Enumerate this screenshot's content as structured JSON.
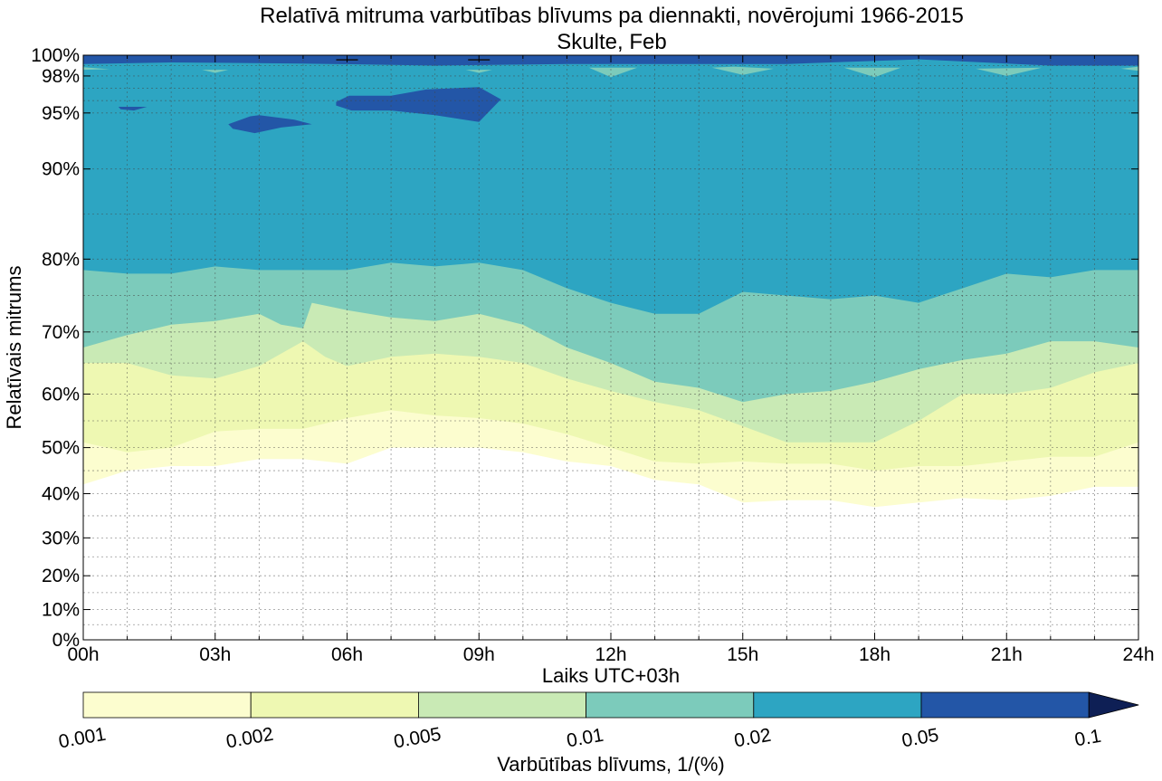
{
  "chart_data": {
    "type": "contour",
    "title": "Relatīvā mitruma varbūtības blīvums pa diennakti, novērojumi 1966-2015",
    "subtitle": "Skulte, Feb",
    "xlabel": "Laiks UTC+03h",
    "ylabel": "Relatīvais mitrums",
    "x_unit": "hour",
    "xlim": [
      0,
      24
    ],
    "ylim": [
      0,
      100
    ],
    "y_scale": "custom-nonlinear",
    "x_ticks": [
      0,
      3,
      6,
      9,
      12,
      15,
      18,
      21,
      24
    ],
    "x_tick_labels": [
      "00h",
      "03h",
      "06h",
      "09h",
      "12h",
      "15h",
      "18h",
      "21h",
      "24h"
    ],
    "y_ticks": [
      0,
      10,
      20,
      30,
      40,
      50,
      60,
      70,
      80,
      90,
      95,
      98,
      100
    ],
    "y_tick_labels": [
      "0%",
      "10%",
      "20%",
      "30%",
      "40%",
      "50%",
      "60%",
      "70%",
      "80%",
      "90%",
      "95%",
      "98%",
      "100%"
    ],
    "y_axis_map": [
      [
        0,
        0
      ],
      [
        10,
        0.0518
      ],
      [
        20,
        0.1096
      ],
      [
        30,
        0.1744
      ],
      [
        40,
        0.25
      ],
      [
        50,
        0.3288
      ],
      [
        60,
        0.4204
      ],
      [
        70,
        0.5266
      ],
      [
        80,
        0.6512
      ],
      [
        90,
        0.8054
      ],
      [
        95,
        0.9012
      ],
      [
        98,
        0.9645
      ],
      [
        100,
        1.0
      ]
    ],
    "grid": true,
    "colorbar": {
      "label": "Varbūtības blīvums, 1/(%)",
      "levels": [
        0.001,
        0.002,
        0.005,
        0.01,
        0.02,
        0.05,
        0.1
      ],
      "level_labels": [
        "0.001",
        "0.002",
        "0.005",
        "0.01",
        "0.02",
        "0.05",
        "0.1"
      ],
      "colors": [
        "#fcfdcf",
        "#eef8b2",
        "#c9eab5",
        "#7ccbbb",
        "#2da5c2",
        "#2356a7"
      ],
      "extend_color": "#0e1f55",
      "extend": "max"
    },
    "band_boundaries": [
      {
        "name": "0.001",
        "x": [
          0,
          1,
          2,
          3,
          4,
          5,
          6,
          7,
          8,
          9,
          10,
          11,
          12,
          13,
          14,
          15,
          16,
          17,
          18,
          19,
          20,
          21,
          22,
          23,
          24
        ],
        "y": [
          42,
          45,
          46,
          46,
          47.5,
          47.5,
          46.5,
          50,
          50,
          50,
          49,
          47,
          46,
          43,
          42,
          38,
          38.5,
          38.5,
          37,
          38,
          39,
          38.5,
          39.5,
          41.5,
          41.5
        ]
      },
      {
        "name": "0.002",
        "x": [
          0,
          1,
          2,
          3,
          4,
          5,
          6,
          7,
          8,
          9,
          10,
          11,
          12,
          13,
          14,
          15,
          16,
          17,
          18,
          19,
          20,
          21,
          22,
          23,
          24
        ],
        "y": [
          51,
          49,
          50,
          53,
          53.5,
          53.5,
          55.5,
          57,
          56,
          55.5,
          54.5,
          52.5,
          50,
          47,
          46.5,
          47,
          46.5,
          46.5,
          45,
          46,
          46,
          47,
          48,
          48,
          51
        ]
      },
      {
        "name": "0.005",
        "x": [
          0,
          1,
          2,
          3,
          4,
          4.5,
          5,
          5.5,
          6,
          7,
          8,
          9,
          10,
          11,
          12,
          13,
          14,
          15,
          16,
          17,
          18,
          19,
          20,
          21,
          22,
          23,
          24
        ],
        "y": [
          65,
          65,
          63,
          62.5,
          64.5,
          66.5,
          68.5,
          66,
          64.5,
          66,
          66.5,
          66,
          65,
          62.5,
          60.5,
          58.5,
          57,
          54,
          51,
          51,
          51,
          55,
          60,
          60,
          61,
          63.5,
          65
        ]
      },
      {
        "name": "0.01",
        "x": [
          0,
          1,
          2,
          3,
          4,
          4.5,
          5,
          5.2,
          6,
          7,
          8,
          9,
          10,
          11,
          12,
          13,
          14,
          15,
          16,
          17,
          18,
          19,
          20,
          21,
          22,
          23,
          24
        ],
        "y": [
          67.5,
          69.5,
          71,
          71.5,
          72.5,
          71,
          70.5,
          74,
          73,
          72,
          71.5,
          72.5,
          71,
          67.5,
          65,
          62,
          61,
          58.5,
          60,
          60.5,
          62,
          64,
          65.5,
          66.5,
          68.5,
          68.5,
          67.5
        ]
      },
      {
        "name": "0.02",
        "x": [
          0,
          1,
          2,
          3,
          4,
          5,
          6,
          7,
          8,
          9,
          10,
          11,
          12,
          13,
          14,
          15,
          16,
          17,
          18,
          19,
          20,
          21,
          22,
          23,
          24
        ],
        "y": [
          78.5,
          78,
          78,
          79,
          78.5,
          78.5,
          78.5,
          79.5,
          79,
          79.5,
          78.5,
          76,
          74,
          72.5,
          72.5,
          75.5,
          75,
          74.5,
          75,
          74,
          76,
          78,
          77.5,
          78.5,
          78.5
        ]
      }
    ],
    "high_density_patches": [
      {
        "level": "0.05",
        "points": [
          [
            0.8,
            95.5
          ],
          [
            1.45,
            95.5
          ],
          [
            1.15,
            95.2
          ],
          [
            0.85,
            95.3
          ]
        ]
      },
      {
        "level": "0.05",
        "points": [
          [
            3.3,
            94.0
          ],
          [
            3.8,
            94.7
          ],
          [
            4.0,
            94.8
          ],
          [
            4.8,
            94.4
          ],
          [
            5.2,
            94.0
          ],
          [
            4.5,
            93.7
          ],
          [
            3.9,
            93.2
          ],
          [
            3.4,
            93.6
          ]
        ]
      },
      {
        "level": "0.05",
        "points": [
          [
            5.75,
            95.9
          ],
          [
            6.05,
            96.4
          ],
          [
            7.0,
            96.4
          ],
          [
            7.8,
            96.9
          ],
          [
            9.0,
            97.1
          ],
          [
            9.5,
            96.1
          ],
          [
            9.0,
            94.2
          ],
          [
            8.0,
            94.8
          ],
          [
            7.0,
            95.2
          ],
          [
            6.1,
            95.2
          ],
          [
            5.75,
            95.6
          ]
        ]
      },
      {
        "level": "0.05",
        "points": [
          [
            0,
            99.15
          ],
          [
            2,
            99.3
          ],
          [
            5,
            99.2
          ],
          [
            8,
            99.0
          ],
          [
            11,
            99.15
          ],
          [
            13,
            99.15
          ],
          [
            16,
            99.15
          ],
          [
            19,
            99.6
          ],
          [
            20,
            99.4
          ],
          [
            22,
            99.0
          ],
          [
            24,
            99.0
          ],
          [
            24,
            100
          ],
          [
            0,
            100
          ]
        ]
      }
    ],
    "light_patches": [
      {
        "level": "0.02",
        "points": [
          [
            0,
            98.6
          ],
          [
            0.6,
            98.65
          ],
          [
            0,
            98.85
          ]
        ]
      },
      {
        "level": "0.02",
        "points": [
          [
            2.7,
            98.6
          ],
          [
            3.0,
            98.3
          ],
          [
            3.3,
            98.6
          ]
        ]
      },
      {
        "level": "0.02",
        "points": [
          [
            8.7,
            98.6
          ],
          [
            9.0,
            98.3
          ],
          [
            9.3,
            98.6
          ]
        ]
      },
      {
        "level": "0.02",
        "points": [
          [
            11.5,
            98.8
          ],
          [
            12.0,
            97.9
          ],
          [
            12.6,
            98.8
          ]
        ]
      },
      {
        "level": "0.02",
        "points": [
          [
            14.3,
            98.8
          ],
          [
            15.0,
            98.1
          ],
          [
            15.7,
            98.7
          ],
          [
            14.8,
            98.9
          ]
        ]
      },
      {
        "level": "0.02",
        "points": [
          [
            17.3,
            98.8
          ],
          [
            18.0,
            97.9
          ],
          [
            18.6,
            98.8
          ]
        ]
      },
      {
        "level": "0.02",
        "points": [
          [
            20.3,
            98.7
          ],
          [
            21.0,
            98.0
          ],
          [
            21.8,
            98.8
          ]
        ]
      },
      {
        "level": "0.02",
        "points": [
          [
            23.6,
            98.7
          ],
          [
            24,
            98.5
          ],
          [
            24,
            98.9
          ]
        ]
      }
    ],
    "top_markers": [
      [
        6,
        99.55
      ],
      [
        9,
        99.55
      ]
    ]
  }
}
